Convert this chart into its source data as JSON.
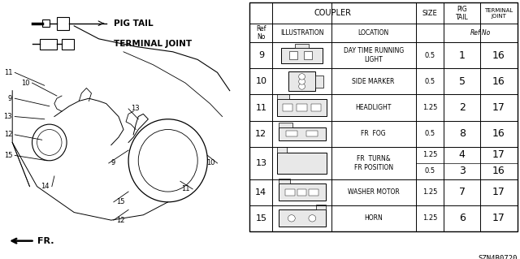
{
  "part_number": "SZN4B0720",
  "bg_color": "#ffffff",
  "line_color": "#000000",
  "text_color": "#000000",
  "gray_color": "#888888",
  "table": {
    "rows": [
      {
        "ref": "9",
        "location": "DAY TIME RUNNING\nLIGHT",
        "size": "0.5",
        "pig": "1",
        "term": "16",
        "split": false
      },
      {
        "ref": "10",
        "location": "SIDE MARKER",
        "size": "0.5",
        "pig": "5",
        "term": "16",
        "split": false
      },
      {
        "ref": "11",
        "location": "HEADLIGHT",
        "size": "1.25",
        "pig": "2",
        "term": "17",
        "split": false
      },
      {
        "ref": "12",
        "location": "FR  FOG",
        "size": "0.5",
        "pig": "8",
        "term": "16",
        "split": false
      },
      {
        "ref": "13",
        "location": "FR  TURN&\nFR POSITION",
        "size": "1.25",
        "pig": "4",
        "term": "17",
        "size2": "0.5",
        "pig2": "3",
        "term2": "16",
        "split": true
      },
      {
        "ref": "14",
        "location": "WASHER MOTOR",
        "size": "1.25",
        "pig": "7",
        "term": "17",
        "split": false
      },
      {
        "ref": "15",
        "location": "HORN",
        "size": "1.25",
        "pig": "6",
        "term": "17",
        "split": false
      }
    ]
  }
}
